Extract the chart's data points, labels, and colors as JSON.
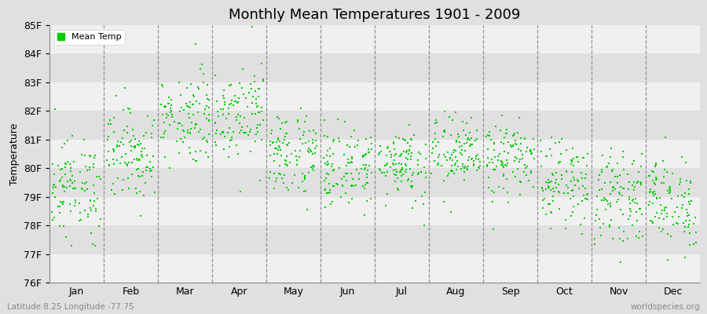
{
  "title": "Monthly Mean Temperatures 1901 - 2009",
  "ylabel": "Temperature",
  "xlabel_labels": [
    "Jan",
    "Feb",
    "Mar",
    "Apr",
    "May",
    "Jun",
    "Jul",
    "Aug",
    "Sep",
    "Oct",
    "Nov",
    "Dec"
  ],
  "ylim": [
    76.0,
    85.0
  ],
  "ytick_labels": [
    "76F",
    "77F",
    "78F",
    "79F",
    "80F",
    "81F",
    "82F",
    "83F",
    "84F",
    "85F"
  ],
  "ytick_values": [
    76,
    77,
    78,
    79,
    80,
    81,
    82,
    83,
    84,
    85
  ],
  "marker_color": "#00CC00",
  "bg_light": "#F0F0F0",
  "bg_dark": "#E0E0E0",
  "legend_label": "Mean Temp",
  "subtitle_left": "Latitude 8.25 Longitude -77.75",
  "subtitle_right": "worldspecies.org",
  "years": 109,
  "monthly_means": [
    79.3,
    80.5,
    81.8,
    82.0,
    80.5,
    80.0,
    80.2,
    80.5,
    80.3,
    79.5,
    79.0,
    78.8
  ],
  "monthly_stds": [
    0.85,
    0.8,
    0.8,
    0.8,
    0.75,
    0.7,
    0.65,
    0.65,
    0.65,
    0.7,
    0.75,
    0.8
  ]
}
